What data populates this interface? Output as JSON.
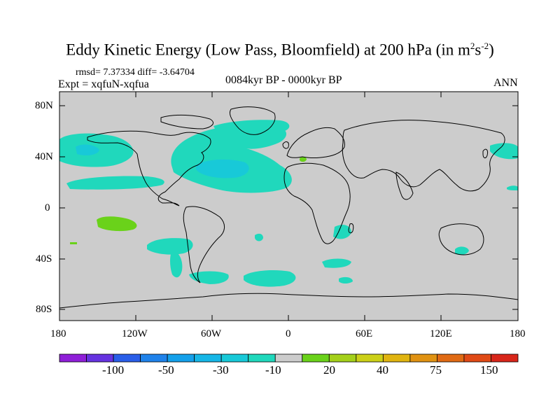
{
  "title": {
    "prefix": "Eddy Kinetic Energy (Low Pass, Bloomfield) at 200 hPa (in m",
    "sup1": "2",
    "mid": "s",
    "sup2": "-2",
    "suffix": ")"
  },
  "stats": {
    "rmsd_line": "rmsd= 7.37334 diff= -3.64704"
  },
  "experiment": "Expt = xqfuN-xqfua",
  "period": "0084kyr BP - 0000kyr BP",
  "season": "ANN",
  "map": {
    "lon_range": [
      -180,
      180
    ],
    "lat_range": [
      -90,
      90
    ],
    "lat_ticks": [
      "80N",
      "40N",
      "0",
      "40S",
      "80S"
    ],
    "lon_ticks": [
      "180",
      "120W",
      "60W",
      "0",
      "60E",
      "120E",
      "180"
    ]
  },
  "colorbar": {
    "colors": [
      "#8f1fd8",
      "#6633e0",
      "#2a5ee8",
      "#1f82ea",
      "#14a0ea",
      "#16b6e6",
      "#18c9d8",
      "#20d8bc",
      "#cccccc",
      "#6ad21a",
      "#a4d01a",
      "#ccd018",
      "#e0b410",
      "#e09212",
      "#e06a14",
      "#e04a16",
      "#d8261a"
    ],
    "labels": [
      "-100",
      "-50",
      "-30",
      "-10",
      "20",
      "40",
      "75",
      "150"
    ]
  },
  "anomaly_colors": {
    "neutral": "#cccccc",
    "neg_weak": "#20d8bc",
    "neg_mid": "#18c9d8",
    "pos_weak": "#6ad21a"
  }
}
